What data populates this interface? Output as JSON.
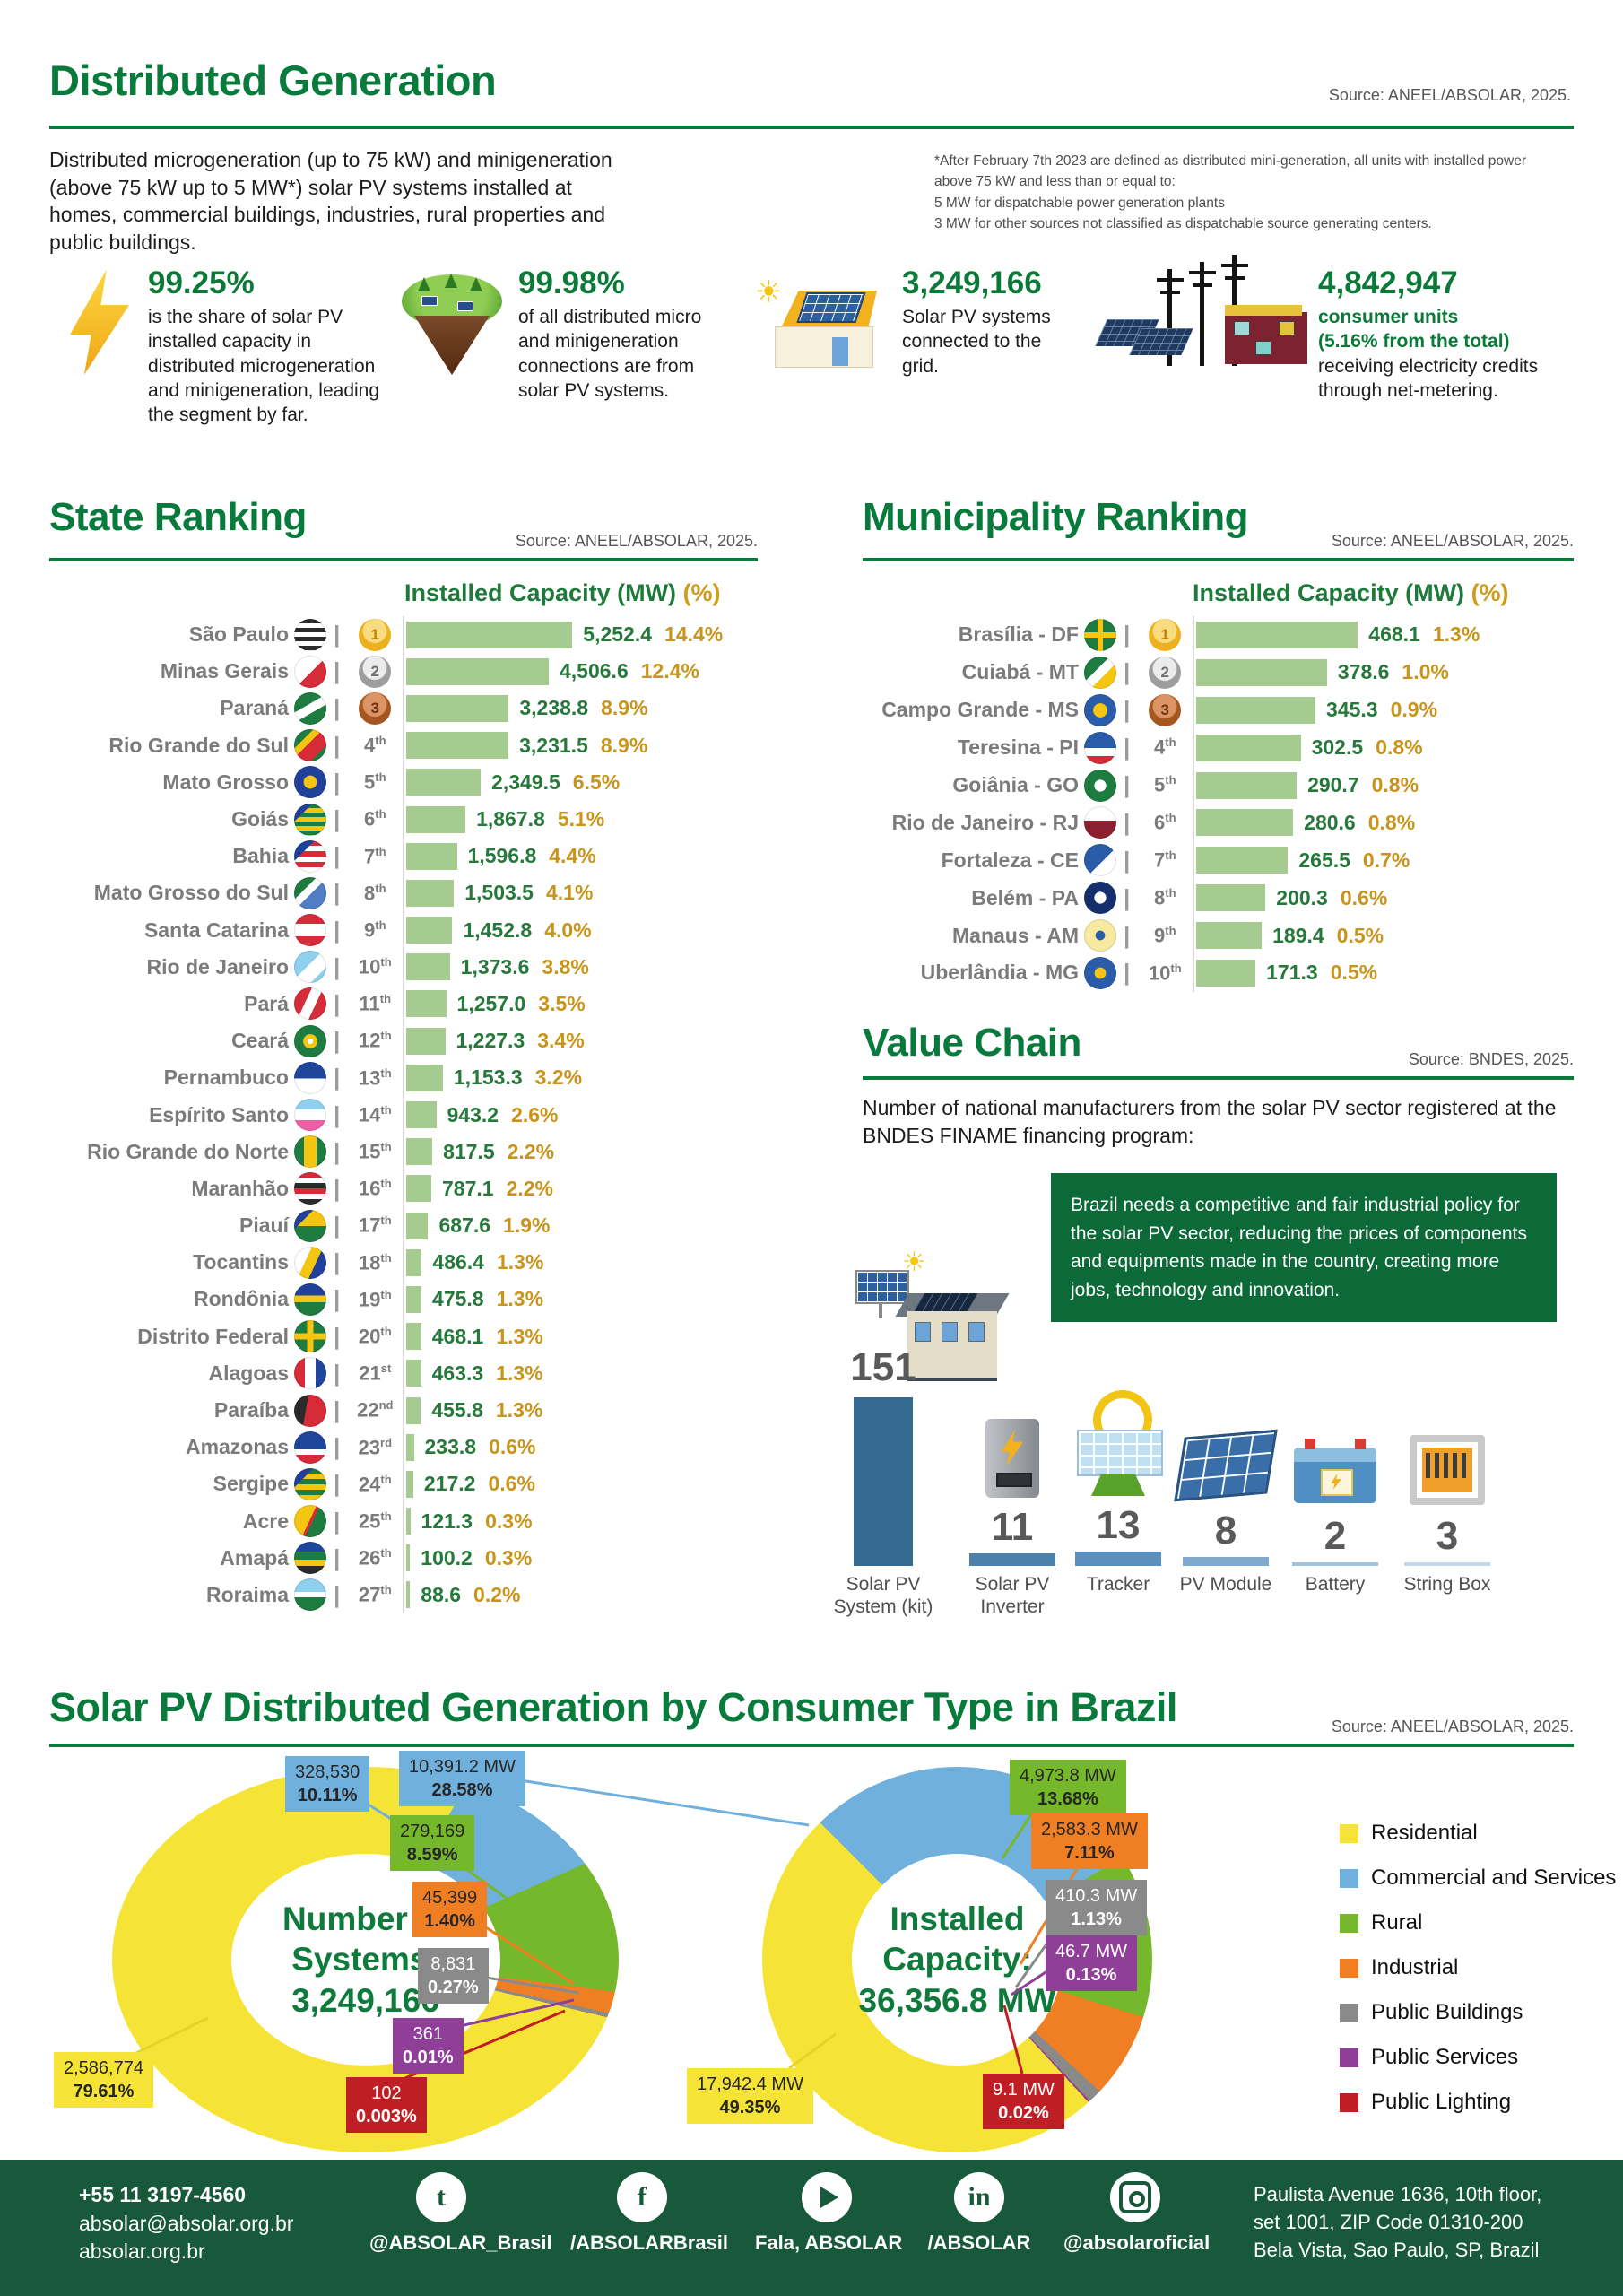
{
  "header": {
    "title": "Distributed Generation",
    "source": "Source: ANEEL/ABSOLAR, 2025.",
    "intro": "Distributed microgeneration (up to 75 kW) and minigeneration (above 75 kW up to 5 MW*) solar PV systems installed at homes, commercial buildings, industries, rural properties and public buildings.",
    "footnote_lines": [
      "*After February 7th 2023 are defined as distributed mini-generation, all units with installed power above 75 kW and less than or equal to:",
      "5 MW for dispatchable power generation plants",
      "3 MW for other sources not classified as dispatchable source generating centers."
    ]
  },
  "stats": [
    {
      "icon": "lightning-icon",
      "value": "99.25%",
      "text": "is the share of solar PV installed capacity in distributed microgeneration and minigeneration, leading the segment by far."
    },
    {
      "icon": "island-icon",
      "value": "99.98%",
      "text": "of all distributed micro and minigeneration connections are from solar PV systems."
    },
    {
      "icon": "solar-house-icon",
      "value": "3,249,166",
      "text": "Solar PV systems connected to the grid."
    },
    {
      "icon": "power-grid-icon",
      "value": "4,842,947",
      "highlight_lines": [
        "consumer units",
        "(5.16% from the total)"
      ],
      "text": "receiving electricity credits through net-metering."
    }
  ],
  "state_ranking": {
    "title": "State Ranking",
    "source": "Source: ANEEL/ABSOLAR, 2025.",
    "col_capacity": "Installed Capacity (MW)",
    "col_pct": "(%)"
  },
  "municipality_ranking": {
    "title": "Municipality Ranking",
    "source": "Source: ANEEL/ABSOLAR, 2025.",
    "col_capacity": "Installed Capacity (MW)",
    "col_pct": "(%)"
  },
  "value_chain": {
    "title": "Value Chain",
    "source": "Source: BNDES, 2025.",
    "description": "Number of national manufacturers from the solar PV sector registered at the BNDES FINAME financing program:",
    "callout": "Brazil needs a competitive and fair industrial policy for the solar PV sector, reducing the prices of components and equipments made in the country, creating more jobs, technology and innovation."
  },
  "consumer_section": {
    "title": "Solar PV Distributed Generation by Consumer Type in Brazil",
    "source": "Source: ANEEL/ABSOLAR, 2025."
  },
  "footer": {
    "phone": "+55 11 3197-4560",
    "email": "absolar@absolar.org.br",
    "website": "absolar.org.br",
    "socials": [
      {
        "icon": "twitter-icon",
        "handle": "@ABSOLAR_Brasil"
      },
      {
        "icon": "facebook-icon",
        "handle": "/ABSOLARBrasil"
      },
      {
        "icon": "youtube-icon",
        "handle": "Fala, ABSOLAR"
      },
      {
        "icon": "linkedin-icon",
        "handle": "/ABSOLAR"
      },
      {
        "icon": "instagram-icon",
        "handle": "@absolaroficial"
      }
    ],
    "address_lines": [
      "Paulista Avenue 1636, 10th floor,",
      "set 1001, ZIP Code 01310-200",
      "Bela Vista, Sao Paulo, SP, Brazil"
    ]
  },
  "chart_data": [
    {
      "type": "bar",
      "title": "State Ranking",
      "xlabel": "Installed Capacity (MW)",
      "unit": "MW",
      "rows": [
        {
          "name": "São Paulo",
          "rank": 1,
          "rank_display": "1st",
          "value": 5252.4,
          "value_display": "5,252.4",
          "pct": "14.4%",
          "flag": "repeating-linear-gradient(180deg,#2b2b2b 0 5px,#ffffff 5px 10px)"
        },
        {
          "name": "Minas Gerais",
          "rank": 2,
          "rank_display": "2nd",
          "value": 4506.6,
          "value_display": "4,506.6",
          "pct": "12.4%",
          "flag": "linear-gradient(135deg,#ffffff 52%,#d62b38 52%)"
        },
        {
          "name": "Paraná",
          "rank": 3,
          "rank_display": "3rd",
          "value": 3238.8,
          "value_display": "3,238.8",
          "pct": "8.9%",
          "flag": "linear-gradient(150deg,#1e7c40 40%,#ffffff 40% 60%,#1e7c40 60%)"
        },
        {
          "name": "Rio Grande do Sul",
          "rank": 4,
          "rank_display": "4th",
          "value": 3231.5,
          "value_display": "3,231.5",
          "pct": "8.9%",
          "flag": "linear-gradient(135deg,#1e7c40 30%,#f4c611 30% 45%,#d62b38 45% 75%,#1e7c40 75%)"
        },
        {
          "name": "Mato Grosso",
          "rank": 5,
          "rank_display": "5th",
          "value": 2349.5,
          "value_display": "2,349.5",
          "pct": "6.5%",
          "flag": "radial-gradient(circle at 50% 50%,#f4c611 0 28%,#20409a 30%)"
        },
        {
          "name": "Goiás",
          "rank": 6,
          "rank_display": "6th",
          "value": 1867.8,
          "value_display": "1,867.8",
          "pct": "5.1%",
          "flag": "linear-gradient(135deg,#20409a 28%,transparent 28%),repeating-linear-gradient(180deg,#1e7c40 0 5px,#f4c611 5px 10px)"
        },
        {
          "name": "Bahia",
          "rank": 7,
          "rank_display": "7th",
          "value": 1596.8,
          "value_display": "1,596.8",
          "pct": "4.4%",
          "flag": "linear-gradient(135deg,#20409a 32%,transparent 32%),repeating-linear-gradient(180deg,#d62b38 0 6px,#ffffff 6px 12px)"
        },
        {
          "name": "Mato Grosso do Sul",
          "rank": 8,
          "rank_display": "8th",
          "value": 1503.5,
          "value_display": "1,503.5",
          "pct": "4.1%",
          "flag": "linear-gradient(135deg,#1e7c40 35%,#ffffff 35% 52%,#4f7ec2 52%)"
        },
        {
          "name": "Santa Catarina",
          "rank": 9,
          "rank_display": "9th",
          "value": 1452.8,
          "value_display": "1,452.8",
          "pct": "4.0%",
          "flag": "linear-gradient(180deg,#d62b38 0 30%,#ffffff 30% 70%,#d62b38 70%)"
        },
        {
          "name": "Rio de Janeiro",
          "rank": 10,
          "rank_display": "10th",
          "value": 1373.6,
          "value_display": "1,373.6",
          "pct": "3.8%",
          "flag": "linear-gradient(135deg,#8fd0ef 45%,#ffffff 45% 75%,#8fd0ef 75%)"
        },
        {
          "name": "Pará",
          "rank": 11,
          "rank_display": "11th",
          "value": 1257.0,
          "value_display": "1,257.0",
          "pct": "3.5%",
          "flag": "linear-gradient(115deg,#d62b38 38%,#ffffff 38% 62%,#d62b38 62%)"
        },
        {
          "name": "Ceará",
          "rank": 12,
          "rank_display": "12th",
          "value": 1227.3,
          "value_display": "1,227.3",
          "pct": "3.4%",
          "flag": "radial-gradient(circle at 50% 50%,#ffffff 0 12%,#f4c611 13% 30%,#1e7c40 32%)"
        },
        {
          "name": "Pernambuco",
          "rank": 13,
          "rank_display": "13th",
          "value": 1153.3,
          "value_display": "1,153.3",
          "pct": "3.2%",
          "flag": "linear-gradient(180deg,#20469b 0 52%,#ffffff 52%)"
        },
        {
          "name": "Espírito Santo",
          "rank": 14,
          "rank_display": "14th",
          "value": 943.2,
          "value_display": "943.2",
          "pct": "2.6%",
          "flag": "linear-gradient(180deg,#8fd0ef 0 33%,#ffffff 33% 66%,#ee5fa7 66%)"
        },
        {
          "name": "Rio Grande do Norte",
          "rank": 15,
          "rank_display": "15th",
          "value": 817.5,
          "value_display": "817.5",
          "pct": "2.2%",
          "flag": "linear-gradient(90deg,#1e7c40 30%,#f4c611 30% 70%,#1e7c40 70%)"
        },
        {
          "name": "Maranhão",
          "rank": 16,
          "rank_display": "16th",
          "value": 787.1,
          "value_display": "787.1",
          "pct": "2.2%",
          "flag": "repeating-linear-gradient(180deg,#d62b38 0 6px,#ffffff 6px 12px,#2b2b2b 12px 18px)"
        },
        {
          "name": "Piauí",
          "rank": 17,
          "rank_display": "17th",
          "value": 687.6,
          "value_display": "687.6",
          "pct": "1.9%",
          "flag": "linear-gradient(135deg,#20409a 30%,transparent 30%),linear-gradient(180deg,#f4c611 0 50%,#1e7c40 50%)"
        },
        {
          "name": "Tocantins",
          "rank": 18,
          "rank_display": "18th",
          "value": 486.4,
          "value_display": "486.4",
          "pct": "1.3%",
          "flag": "linear-gradient(115deg,#ffffff 38%,#f4c611 38% 62%,#20409a 62%)"
        },
        {
          "name": "Rondônia",
          "rank": 19,
          "rank_display": "19th",
          "value": 475.8,
          "value_display": "475.8",
          "pct": "1.3%",
          "flag": "linear-gradient(180deg,#20409a 0 38%,#f4c611 38% 58%,#1e7c40 58%)"
        },
        {
          "name": "Distrito Federal",
          "rank": 20,
          "rank_display": "20th",
          "value": 468.1,
          "value_display": "468.1",
          "pct": "1.3%",
          "flag": "linear-gradient(0deg,transparent 40%,#f4c611 40% 60%,transparent 60%),linear-gradient(90deg,#1e7c40 40%,#f4c611 40% 60%,#1e7c40 60%)"
        },
        {
          "name": "Alagoas",
          "rank": 21,
          "rank_display": "21st",
          "value": 463.3,
          "value_display": "463.3",
          "pct": "1.3%",
          "flag": "linear-gradient(90deg,#d62b38 0 33%,#ffffff 33% 66%,#20469b 66%)"
        },
        {
          "name": "Paraíba",
          "rank": 22,
          "rank_display": "22nd",
          "value": 455.8,
          "value_display": "455.8",
          "pct": "1.3%",
          "flag": "linear-gradient(100deg,#2b2b2b 38%,#d62b38 38%)"
        },
        {
          "name": "Amazonas",
          "rank": 23,
          "rank_display": "23rd",
          "value": 233.8,
          "value_display": "233.8",
          "pct": "0.6%",
          "flag": "linear-gradient(180deg,#20469b 0 55%,#ffffff 55% 72%,#d62b38 72%)"
        },
        {
          "name": "Sergipe",
          "rank": 24,
          "rank_display": "24th",
          "value": 217.2,
          "value_display": "217.2",
          "pct": "0.6%",
          "flag": "linear-gradient(135deg,#20409a 30%,transparent 30%),repeating-linear-gradient(180deg,#1e7c40 0 6px,#f4c611 6px 12px)"
        },
        {
          "name": "Acre",
          "rank": 25,
          "rank_display": "25th",
          "value": 121.3,
          "value_display": "121.3",
          "pct": "0.3%",
          "flag": "linear-gradient(115deg,#f4c611 48%,#d62b38 48% 55%,#1e7c40 55%)"
        },
        {
          "name": "Amapá",
          "rank": 26,
          "rank_display": "26th",
          "value": 100.2,
          "value_display": "100.2",
          "pct": "0.3%",
          "flag": "linear-gradient(180deg,#20469b 0 30%,#1e7c40 30% 55%,#f4c611 55% 75%,#2b2b2b 75%)"
        },
        {
          "name": "Roraima",
          "rank": 27,
          "rank_display": "27th",
          "value": 88.6,
          "value_display": "88.6",
          "pct": "0.2%",
          "flag": "linear-gradient(180deg,#8fd0ef 0 42%,#ffffff 42% 58%,#1e7c40 58%)"
        }
      ]
    },
    {
      "type": "bar",
      "title": "Municipality Ranking",
      "xlabel": "Installed Capacity (MW)",
      "unit": "MW",
      "rows": [
        {
          "name": "Brasília - DF",
          "rank": 1,
          "rank_display": "1st",
          "value": 468.1,
          "value_display": "468.1",
          "pct": "1.3%",
          "flag": "linear-gradient(0deg,transparent 42%,#f4c611 42% 58%,transparent 58%),linear-gradient(90deg,#1e7c40 42%,#f4c611 42% 58%,#1e7c40 58%)"
        },
        {
          "name": "Cuiabá - MT",
          "rank": 2,
          "rank_display": "2nd",
          "value": 378.6,
          "value_display": "378.6",
          "pct": "1.0%",
          "flag": "linear-gradient(135deg,#1e7c40 40%,#ffffff 40% 60%,#f4c611 60%)"
        },
        {
          "name": "Campo Grande - MS",
          "rank": 3,
          "rank_display": "3rd",
          "value": 345.3,
          "value_display": "345.3",
          "pct": "0.9%",
          "flag": "radial-gradient(circle at 50% 50%,#f4c611 0 30%,#2a5caa 32%)"
        },
        {
          "name": "Teresina - PI",
          "rank": 4,
          "rank_display": "4th",
          "value": 302.5,
          "value_display": "302.5",
          "pct": "0.8%",
          "flag": "linear-gradient(180deg,#2a5caa 0 50%,#ffffff 50% 75%,#d62b38 75%)"
        },
        {
          "name": "Goiânia - GO",
          "rank": 5,
          "rank_display": "5th",
          "value": 290.7,
          "value_display": "290.7",
          "pct": "0.8%",
          "flag": "radial-gradient(circle at 50% 50%,#ffffff 0 25%,#1e7c40 27%)"
        },
        {
          "name": "Rio de Janeiro - RJ",
          "rank": 6,
          "rank_display": "6th",
          "value": 280.6,
          "value_display": "280.6",
          "pct": "0.8%",
          "flag": "linear-gradient(180deg,#ffffff 0 45%,#8c2030 45%)"
        },
        {
          "name": "Fortaleza - CE",
          "rank": 7,
          "rank_display": "7th",
          "value": 265.5,
          "value_display": "265.5",
          "pct": "0.7%",
          "flag": "linear-gradient(135deg,#2a5caa 55%,#ffffff 55%)"
        },
        {
          "name": "Belém - PA",
          "rank": 8,
          "rank_display": "8th",
          "value": 200.3,
          "value_display": "200.3",
          "pct": "0.6%",
          "flag": "radial-gradient(circle at 50% 50%,#ffffff 0 25%,#142f6b 27%)"
        },
        {
          "name": "Manaus - AM",
          "rank": 9,
          "rank_display": "9th",
          "value": 189.4,
          "value_display": "189.4",
          "pct": "0.5%",
          "flag": "radial-gradient(circle at 50% 50%,#2a5caa 0 20%,#f7e9a0 22%)"
        },
        {
          "name": "Uberlândia - MG",
          "rank": 10,
          "rank_display": "10th",
          "value": 171.3,
          "value_display": "171.3",
          "pct": "0.5%",
          "flag": "radial-gradient(circle at 50% 50%,#f4c611 0 24%,#2a5caa 26%)"
        }
      ]
    },
    {
      "type": "bar",
      "title": "Value Chain",
      "categories": [
        "Solar PV System (kit)",
        "Solar PV Inverter",
        "Tracker",
        "PV Module",
        "Battery",
        "String Box"
      ],
      "values": [
        151,
        11,
        13,
        8,
        2,
        3
      ],
      "items": [
        {
          "label_lines": [
            "Solar PV",
            "System (kit)"
          ],
          "display": "151",
          "icon": "solar-kit-icon"
        },
        {
          "label_lines": [
            "Solar PV",
            "Inverter"
          ],
          "display": "11",
          "icon": "inverter-icon"
        },
        {
          "label_lines": [
            "Tracker"
          ],
          "display": "13",
          "icon": "tracker-icon"
        },
        {
          "label_lines": [
            "PV Module"
          ],
          "display": "8",
          "icon": "pv-module-icon"
        },
        {
          "label_lines": [
            "Battery"
          ],
          "display": "2",
          "icon": "battery-icon"
        },
        {
          "label_lines": [
            "String Box"
          ],
          "display": "3",
          "icon": "string-box-icon"
        }
      ]
    },
    {
      "type": "pie",
      "title": "Number of Systems",
      "center_lines": [
        "Number of",
        "Systems:",
        "3,249,166"
      ],
      "slices": [
        {
          "label": "Residential",
          "color": "#f5e335",
          "value": 2586774,
          "value_display": "2,586,774",
          "pct": "79.61%",
          "pct_num": 79.61,
          "text": "dark"
        },
        {
          "label": "Commercial and Services",
          "color": "#6fb0dd",
          "value": 328530,
          "value_display": "328,530",
          "pct": "10.11%",
          "pct_num": 10.11,
          "text": "dark"
        },
        {
          "label": "Rural",
          "color": "#76b82c",
          "value": 279169,
          "value_display": "279,169",
          "pct": "8.59%",
          "pct_num": 8.59,
          "text": "dark"
        },
        {
          "label": "Industrial",
          "color": "#f07e22",
          "value": 45399,
          "value_display": "45,399",
          "pct": "1.40%",
          "pct_num": 1.4,
          "text": "dark"
        },
        {
          "label": "Public Buildings",
          "color": "#8a8a8a",
          "value": 8831,
          "value_display": "8,831",
          "pct": "0.27%",
          "pct_num": 0.27,
          "text": "light"
        },
        {
          "label": "Public Services",
          "color": "#8f3f97",
          "value": 361,
          "value_display": "361",
          "pct": "0.01%",
          "pct_num": 0.01,
          "text": "light"
        },
        {
          "label": "Public Lighting",
          "color": "#c01e25",
          "value": 102,
          "value_display": "102",
          "pct": "0.003%",
          "pct_num": 0.003,
          "text": "light"
        }
      ]
    },
    {
      "type": "pie",
      "title": "Installed Capacity",
      "center_lines": [
        "Installed",
        "Capacity:",
        "36,356.8 MW"
      ],
      "slices": [
        {
          "label": "Residential",
          "color": "#f5e335",
          "value": 17942.4,
          "value_display": "17,942.4 MW",
          "pct": "49.35%",
          "pct_num": 49.35,
          "text": "dark"
        },
        {
          "label": "Commercial and Services",
          "color": "#6fb0dd",
          "value": 10391.2,
          "value_display": "10,391.2 MW",
          "pct": "28.58%",
          "pct_num": 28.58,
          "text": "dark"
        },
        {
          "label": "Rural",
          "color": "#76b82c",
          "value": 4973.8,
          "value_display": "4,973.8 MW",
          "pct": "13.68%",
          "pct_num": 13.68,
          "text": "dark"
        },
        {
          "label": "Industrial",
          "color": "#f07e22",
          "value": 2583.3,
          "value_display": "2,583.3 MW",
          "pct": "7.11%",
          "pct_num": 7.11,
          "text": "dark"
        },
        {
          "label": "Public Buildings",
          "color": "#8a8a8a",
          "value": 410.3,
          "value_display": "410.3 MW",
          "pct": "1.13%",
          "pct_num": 1.13,
          "text": "light"
        },
        {
          "label": "Public Services",
          "color": "#8f3f97",
          "value": 46.7,
          "value_display": "46.7 MW",
          "pct": "0.13%",
          "pct_num": 0.13,
          "text": "light"
        },
        {
          "label": "Public Lighting",
          "color": "#c01e25",
          "value": 9.1,
          "value_display": "9.1 MW",
          "pct": "0.02%",
          "pct_num": 0.02,
          "text": "light"
        }
      ]
    }
  ]
}
